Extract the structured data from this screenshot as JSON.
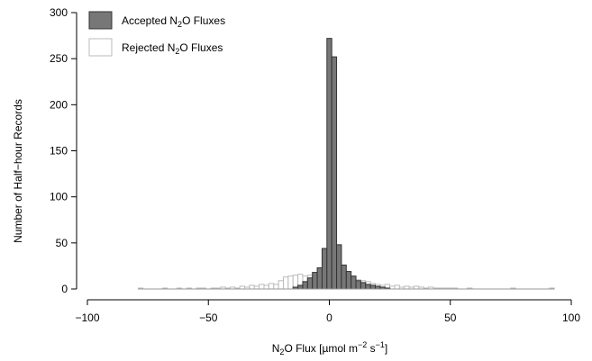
{
  "chart_data": {
    "type": "bar",
    "title": "",
    "xlabel": {
      "pre": "N",
      "sub": "2",
      "mid": "O Flux [µmol m",
      "sup1": "−2",
      "mid2": " s",
      "sup2": "−1",
      "post": "]"
    },
    "ylabel": "Number of Half−hour Records",
    "xlim": [
      -100,
      100
    ],
    "ylim": [
      0,
      300
    ],
    "x_ticks": [
      -100,
      -50,
      0,
      50,
      100
    ],
    "x_tick_labels": [
      "−100",
      "−50",
      "0",
      "50",
      "100"
    ],
    "y_ticks": [
      0,
      50,
      100,
      150,
      200,
      250,
      300
    ],
    "y_tick_labels": [
      "0",
      "50",
      "100",
      "150",
      "200",
      "250",
      "300"
    ],
    "bin_width": 2,
    "legend_position": "top-left",
    "legend": [
      {
        "pre": "Accepted N",
        "sub": "2",
        "post": "O Fluxes",
        "fill": "#777777",
        "stroke": "#333333"
      },
      {
        "pre": "Rejected N",
        "sub": "2",
        "post": "O Fluxes",
        "fill": "#ffffff",
        "stroke": "#bbbbbb"
      }
    ],
    "series": [
      {
        "name": "Accepted N2O Fluxes",
        "fill": "#777777",
        "stroke": "#333333",
        "bins": [
          [
            -14,
            2
          ],
          [
            -12,
            4
          ],
          [
            -10,
            8
          ],
          [
            -8,
            12
          ],
          [
            -6,
            18
          ],
          [
            -4,
            23
          ],
          [
            -2,
            44
          ],
          [
            0,
            272
          ],
          [
            2,
            252
          ],
          [
            4,
            48
          ],
          [
            6,
            26
          ],
          [
            8,
            19
          ],
          [
            10,
            14
          ],
          [
            12,
            9
          ],
          [
            14,
            7
          ],
          [
            16,
            5
          ],
          [
            18,
            4
          ],
          [
            20,
            3
          ],
          [
            22,
            2
          ],
          [
            24,
            1
          ]
        ]
      },
      {
        "name": "Rejected N2O Fluxes",
        "fill": "#ffffff",
        "stroke": "#bbbbbb",
        "bins": [
          [
            -78,
            1
          ],
          [
            -76,
            0
          ],
          [
            -74,
            0
          ],
          [
            -72,
            0
          ],
          [
            -70,
            0
          ],
          [
            -68,
            1
          ],
          [
            -66,
            0
          ],
          [
            -64,
            0
          ],
          [
            -62,
            1
          ],
          [
            -60,
            0
          ],
          [
            -58,
            1
          ],
          [
            -56,
            0
          ],
          [
            -54,
            1
          ],
          [
            -52,
            1
          ],
          [
            -50,
            0
          ],
          [
            -48,
            1
          ],
          [
            -46,
            1
          ],
          [
            -44,
            2
          ],
          [
            -42,
            1
          ],
          [
            -40,
            2
          ],
          [
            -38,
            1
          ],
          [
            -36,
            3
          ],
          [
            -34,
            2
          ],
          [
            -32,
            4
          ],
          [
            -30,
            3
          ],
          [
            -28,
            5
          ],
          [
            -26,
            4
          ],
          [
            -24,
            6
          ],
          [
            -22,
            5
          ],
          [
            -20,
            9
          ],
          [
            -18,
            13
          ],
          [
            -16,
            14
          ],
          [
            -14,
            15
          ],
          [
            -12,
            16
          ],
          [
            -10,
            14
          ],
          [
            -8,
            15
          ],
          [
            -6,
            14
          ],
          [
            -4,
            13
          ],
          [
            -2,
            9
          ],
          [
            0,
            5
          ],
          [
            2,
            8
          ],
          [
            4,
            13
          ],
          [
            6,
            14
          ],
          [
            8,
            13
          ],
          [
            10,
            11
          ],
          [
            12,
            10
          ],
          [
            14,
            9
          ],
          [
            16,
            8
          ],
          [
            18,
            6
          ],
          [
            20,
            5
          ],
          [
            22,
            4
          ],
          [
            24,
            5
          ],
          [
            26,
            3
          ],
          [
            28,
            4
          ],
          [
            30,
            2
          ],
          [
            32,
            3
          ],
          [
            34,
            2
          ],
          [
            36,
            3
          ],
          [
            38,
            2
          ],
          [
            40,
            1
          ],
          [
            42,
            2
          ],
          [
            44,
            1
          ],
          [
            46,
            1
          ],
          [
            48,
            1
          ],
          [
            50,
            1
          ],
          [
            52,
            1
          ],
          [
            54,
            0
          ],
          [
            56,
            0
          ],
          [
            58,
            1
          ],
          [
            60,
            0
          ],
          [
            62,
            0
          ],
          [
            64,
            0
          ],
          [
            66,
            0
          ],
          [
            68,
            0
          ],
          [
            70,
            0
          ],
          [
            72,
            0
          ],
          [
            74,
            0
          ],
          [
            76,
            1
          ],
          [
            78,
            0
          ],
          [
            80,
            0
          ],
          [
            82,
            0
          ],
          [
            84,
            0
          ],
          [
            86,
            0
          ],
          [
            88,
            0
          ],
          [
            90,
            0
          ],
          [
            92,
            1
          ]
        ]
      }
    ]
  }
}
